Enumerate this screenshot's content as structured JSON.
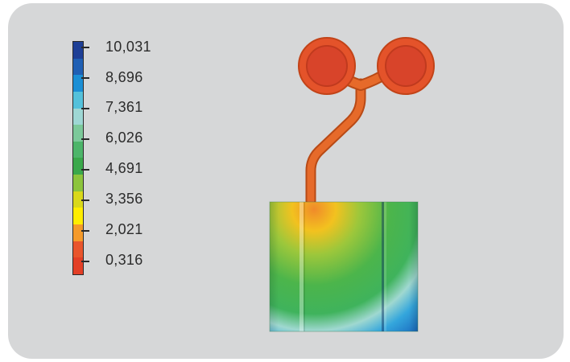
{
  "legend": {
    "labels": [
      "10,031",
      "8,696",
      "7,361",
      "6,026",
      "4,691",
      "3,356",
      "2,021",
      "0,316"
    ],
    "colors": [
      "#1e3f96",
      "#1f5fb4",
      "#1b8fd5",
      "#54c1db",
      "#9ed7d4",
      "#7cc99a",
      "#4db56a",
      "#3aa84b",
      "#8cc43c",
      "#d9d81a",
      "#ffed00",
      "#f59a2a",
      "#e9552c",
      "#e33f26"
    ]
  }
}
